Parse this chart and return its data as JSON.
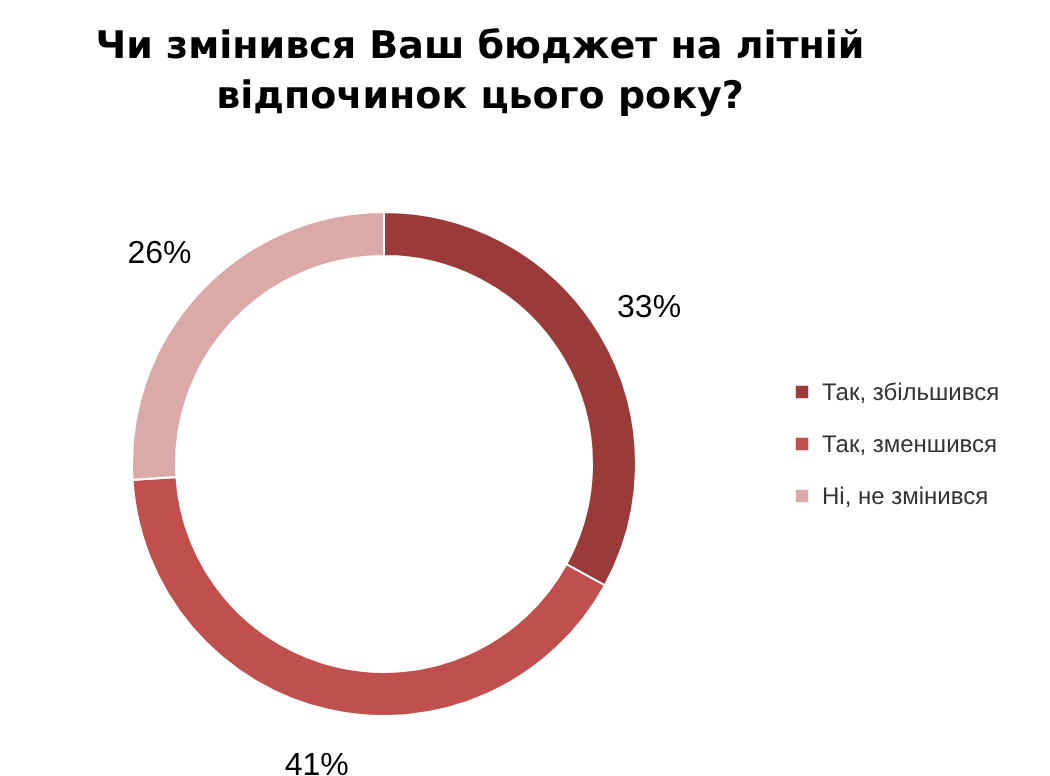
{
  "chart_data": {
    "type": "donut",
    "title": "Чи змінився Ваш бюджет на літній відпочинок цього року?",
    "categories": [
      "Так, збільшився",
      "Так, зменшився",
      "Ні, не змінився"
    ],
    "values": [
      33,
      41,
      26
    ],
    "colors": [
      "#9b3b39",
      "#c0504d",
      "#dba9a8"
    ],
    "value_labels": [
      "33%",
      "41%",
      "26%"
    ],
    "legend": "right"
  }
}
